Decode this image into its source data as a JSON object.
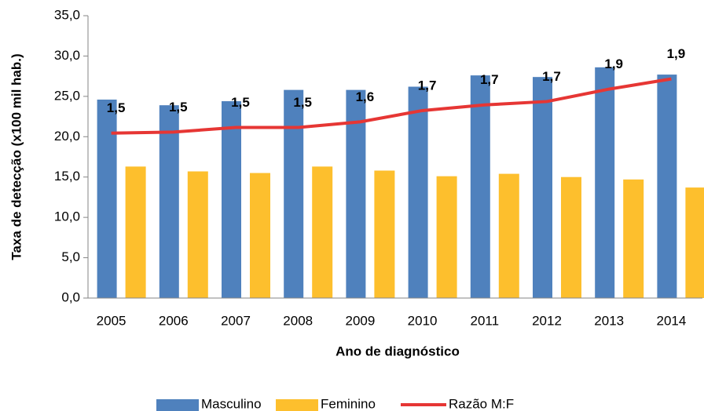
{
  "chart_data": {
    "type": "bar",
    "categories": [
      "2005",
      "2006",
      "2007",
      "2008",
      "2009",
      "2010",
      "2011",
      "2012",
      "2013",
      "2014"
    ],
    "series": [
      {
        "name": "Masculino",
        "color": "#4f81bd",
        "values": [
          24.6,
          23.9,
          24.4,
          25.8,
          25.8,
          26.2,
          27.6,
          27.4,
          28.6,
          27.7
        ]
      },
      {
        "name": "Feminino",
        "color": "#fdbf2d",
        "values": [
          16.3,
          15.7,
          15.5,
          16.3,
          15.8,
          15.1,
          15.4,
          15.0,
          14.7,
          13.7
        ]
      },
      {
        "name": "Razão M:F",
        "color": "#e63634",
        "type": "line",
        "axis": "y2",
        "values": [
          1.46,
          1.47,
          1.51,
          1.51,
          1.56,
          1.66,
          1.71,
          1.74,
          1.85,
          1.94
        ],
        "value_labels": [
          "1,5",
          "1,5",
          "1,5",
          "1,5",
          "1,6",
          "1,7",
          "1,7",
          "1,7",
          "1,9",
          "1,9"
        ]
      }
    ],
    "y_label": "Taxa de detecção (x100 mil hab.)",
    "x_label": "Ano de diagnóstico",
    "ylim": [
      0,
      35
    ],
    "yticks": [
      {
        "value": 0,
        "label": "0,0"
      },
      {
        "value": 5,
        "label": "5,0"
      },
      {
        "value": 10,
        "label": "10,0"
      },
      {
        "value": 15,
        "label": "15,0"
      },
      {
        "value": 20,
        "label": "20,0"
      },
      {
        "value": 25,
        "label": "25,0"
      },
      {
        "value": 30,
        "label": "30,0"
      },
      {
        "value": 35,
        "label": "35,0"
      }
    ],
    "y2lim": [
      0,
      2.5
    ],
    "legend": "bottom"
  }
}
